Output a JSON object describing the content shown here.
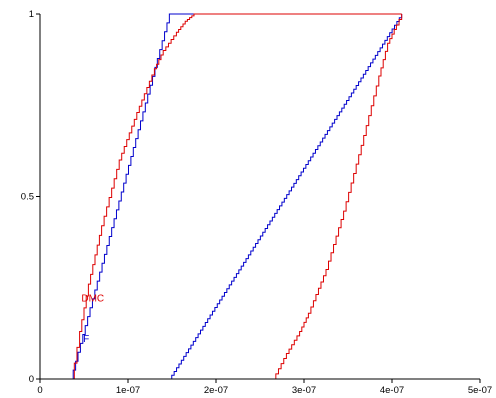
{
  "chart_data": {
    "type": "line",
    "title": "",
    "xlabel": "",
    "ylabel": "",
    "xlim": [
      0,
      5e-07
    ],
    "ylim": [
      0,
      1
    ],
    "grid": false,
    "x_ticks": [
      {
        "value": 0,
        "label": "0"
      },
      {
        "value": 1e-07,
        "label": "1e-07"
      },
      {
        "value": 2e-07,
        "label": "2e-07"
      },
      {
        "value": 3e-07,
        "label": "3e-07"
      },
      {
        "value": 4e-07,
        "label": "4e-07"
      },
      {
        "value": 5e-07,
        "label": "5e-07"
      }
    ],
    "y_ticks": [
      {
        "value": 0,
        "label": "0"
      },
      {
        "value": 0.5,
        "label": "0.5"
      },
      {
        "value": 1,
        "label": "1"
      }
    ],
    "series": [
      {
        "name": "F",
        "color": "#0000cc",
        "style": "step",
        "segments": [
          {
            "x": [
              3.5e-08,
              1.47e-07,
              4.11e-07
            ],
            "y": [
              0,
              1,
              1
            ]
          },
          {
            "x": [
              3.5e-08,
              4.11e-07
            ],
            "y": [
              0,
              0
            ]
          },
          {
            "x": [
              1.47e-07,
              4.11e-07
            ],
            "y": [
              0,
              1
            ]
          }
        ]
      },
      {
        "name": "DMC",
        "color": "#dd0000",
        "style": "step",
        "segments": [
          {
            "x": [
              3.6e-08,
              4.5e-08,
              5.5e-08,
              7e-08,
              9e-08,
              1.1e-07,
              1.3e-07,
              1.4e-07,
              1.55e-07,
              1.65e-07,
              1.75e-07,
              4.11e-07
            ],
            "y": [
              0,
              0.13,
              0.26,
              0.42,
              0.6,
              0.73,
              0.85,
              0.9,
              0.95,
              0.98,
              1,
              1
            ]
          },
          {
            "x": [
              2.65e-07,
              2.8e-07,
              2.95e-07,
              3.05e-07,
              3.25e-07,
              3.45e-07,
              3.65e-07,
              3.85e-07,
              3.95e-07,
              4.05e-07,
              4.11e-07
            ],
            "y": [
              0,
              0.07,
              0.13,
              0.18,
              0.3,
              0.46,
              0.64,
              0.83,
              0.92,
              0.97,
              1
            ]
          }
        ]
      }
    ],
    "labels": [
      {
        "series": "DMC",
        "text": "DMC",
        "color": "#dd0000",
        "x": 4.7e-08,
        "y": 0.22
      },
      {
        "series": "F",
        "text": "F",
        "color": "#0000cc",
        "x": 4.9e-08,
        "y": 0.11
      }
    ]
  }
}
